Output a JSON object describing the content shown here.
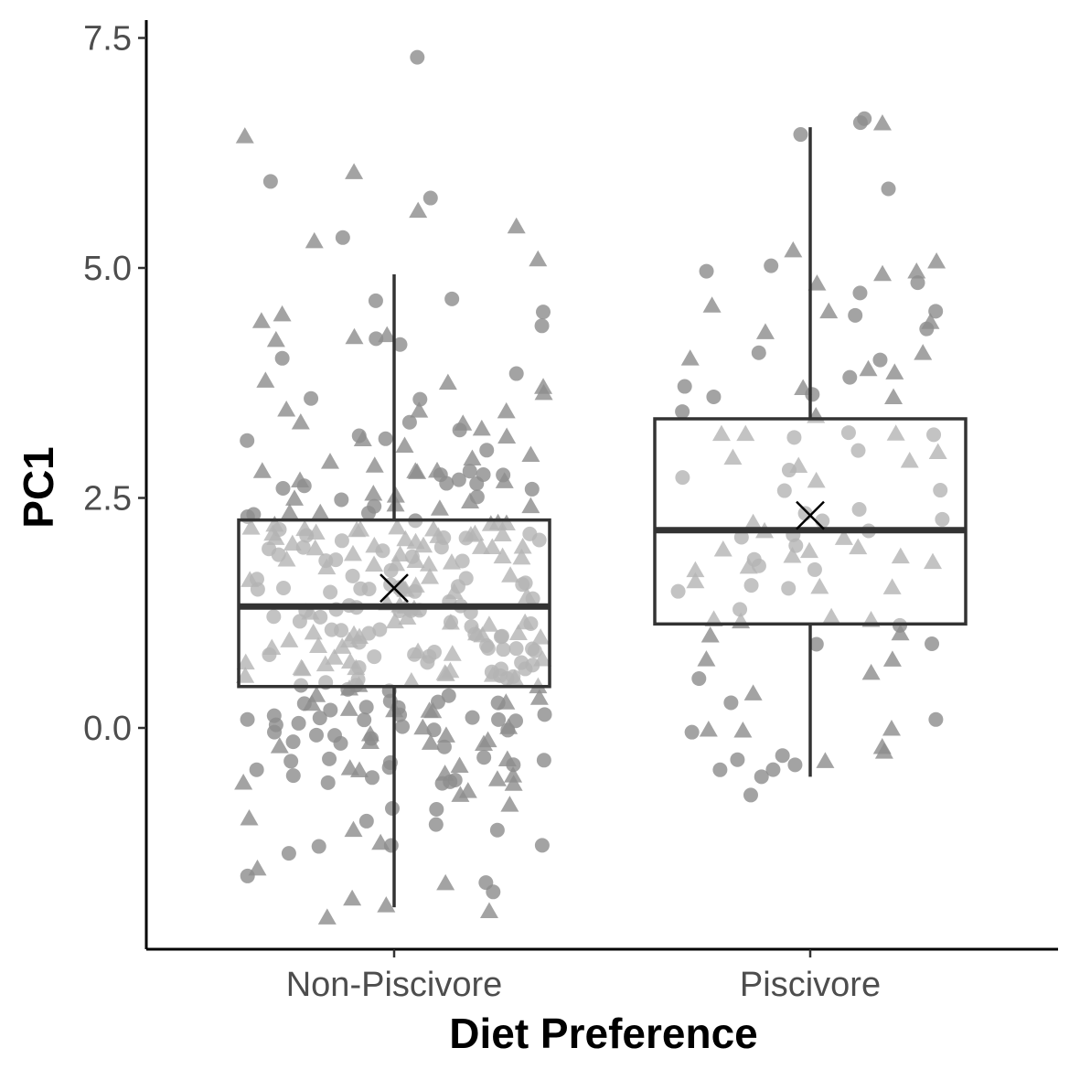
{
  "chart_data": {
    "type": "boxplot",
    "title": "",
    "xlabel": "Diet Preference",
    "ylabel": "PC1",
    "ylim": [
      -2.4,
      7.75
    ],
    "yticks": [
      "0.0",
      "2.5",
      "5.0",
      "7.5"
    ],
    "grid": false,
    "legend": "none",
    "categories": [
      "Non-Piscivore",
      "Piscivore"
    ],
    "colors": {
      "points": "#8c8c8c",
      "box": "#333333",
      "axis": "#000000",
      "mean_marker": "#000000"
    },
    "boxes": [
      {
        "category": "Non-Piscivore",
        "whisker_low": -1.95,
        "q1": 0.45,
        "median": 1.32,
        "q3": 2.26,
        "whisker_high": 4.93,
        "mean": 1.52
      },
      {
        "category": "Piscivore",
        "whisker_low": -0.53,
        "q1": 1.13,
        "median": 2.15,
        "q3": 3.36,
        "whisker_high": 6.53,
        "mean": 2.31
      }
    ],
    "points": [
      {
        "category": "Non-Piscivore",
        "n": 330,
        "spread": 1.65,
        "seed": 11,
        "outliers": [
          7.29,
          6.43,
          6.04,
          5.94,
          5.76,
          5.62,
          5.45,
          5.33,
          5.29,
          -1.05,
          -1.11,
          -1.25,
          -1.53,
          -1.93
        ]
      },
      {
        "category": "Piscivore",
        "n": 100,
        "spread": 1.45,
        "seed": 27,
        "outliers": [
          6.57,
          5.86,
          5.19,
          5.07,
          4.96,
          4.83,
          -0.02,
          -0.03,
          -0.26,
          -0.53
        ]
      }
    ]
  }
}
